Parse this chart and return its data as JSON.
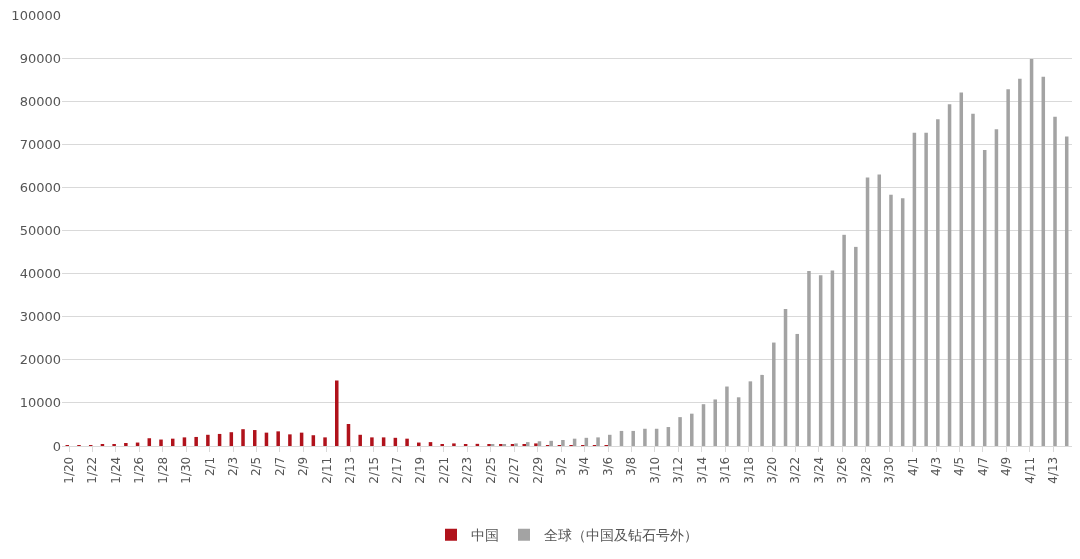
{
  "chart_data": {
    "type": "bar",
    "categories": [
      "1/20",
      null,
      "1/22",
      null,
      "1/24",
      null,
      "1/26",
      null,
      "1/28",
      null,
      "1/30",
      null,
      "2/1",
      null,
      "2/3",
      null,
      "2/5",
      null,
      "2/7",
      null,
      "2/9",
      null,
      "2/11",
      null,
      "2/13",
      null,
      "2/15",
      null,
      "2/17",
      null,
      "2/19",
      null,
      "2/21",
      null,
      "2/23",
      null,
      "2/25",
      null,
      "2/27",
      null,
      "2/29",
      null,
      "3/2",
      null,
      "3/4",
      null,
      "3/6",
      null,
      "3/8",
      null,
      "3/10",
      null,
      "3/12",
      null,
      "3/14",
      null,
      "3/16",
      null,
      "3/18",
      null,
      "3/20",
      null,
      "3/22",
      null,
      "3/24",
      null,
      "3/26",
      null,
      "3/28",
      null,
      "3/30",
      null,
      "4/1",
      null,
      "4/3",
      null,
      "4/5",
      null,
      "4/7",
      null,
      "4/9",
      null,
      "4/11",
      null,
      "4/13",
      null
    ],
    "series": [
      {
        "name": "中国",
        "color": "#b0121b",
        "values": [
          100,
          100,
          100,
          300,
          400,
          700,
          800,
          1800,
          1500,
          1700,
          2000,
          2100,
          2600,
          2800,
          3200,
          3900,
          3700,
          3100,
          3400,
          2700,
          3100,
          2500,
          2000,
          15200,
          5100,
          2600,
          2000,
          2000,
          1900,
          1700,
          800,
          900,
          400,
          600,
          400,
          500,
          400,
          400,
          300,
          400,
          600,
          200,
          100,
          100,
          100,
          100,
          100,
          0,
          0,
          0,
          0,
          0,
          0,
          0,
          0,
          0,
          0,
          0,
          0,
          0,
          0,
          0,
          0,
          0,
          0,
          0,
          0,
          0,
          0,
          0,
          0,
          0,
          0,
          0,
          0,
          0,
          0,
          0,
          0,
          0,
          0,
          0,
          0,
          0,
          0,
          0
        ]
      },
      {
        "name": "全球（中国及钻石号外）",
        "color": "#a3a3a3",
        "values": [
          0,
          0,
          0,
          0,
          0,
          0,
          0,
          0,
          0,
          0,
          0,
          0,
          0,
          0,
          0,
          0,
          0,
          0,
          0,
          0,
          0,
          0,
          0,
          0,
          0,
          0,
          0,
          0,
          0,
          0,
          0,
          0,
          null,
          null,
          null,
          null,
          300,
          400,
          600,
          900,
          1100,
          1200,
          1400,
          1700,
          1900,
          2000,
          2600,
          3500,
          3500,
          4000,
          4000,
          4400,
          6700,
          7500,
          9700,
          10800,
          13800,
          11300,
          15000,
          16500,
          24000,
          31800,
          26000,
          40600,
          39600,
          40700,
          49000,
          46200,
          62300,
          63000,
          58300,
          57500,
          72700,
          72700,
          75800,
          79300,
          82000,
          77100,
          68700,
          73500,
          82800,
          85200,
          89800,
          85700,
          76400,
          71800
        ]
      }
    ],
    "ylim": [
      0,
      100000
    ],
    "yticks": [
      0,
      10000,
      20000,
      30000,
      40000,
      50000,
      60000,
      70000,
      80000,
      90000,
      100000
    ],
    "grid": "y",
    "legend": "bottom"
  }
}
